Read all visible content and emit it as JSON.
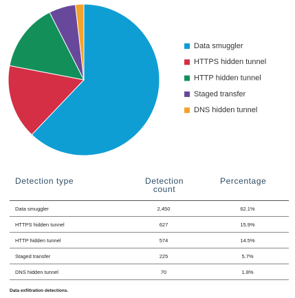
{
  "chart_data": {
    "type": "pie",
    "categories": [
      "Data smuggler",
      "HTTPS hidden tunnel",
      "HTTP hidden tunnel",
      "Staged transfer",
      "DNS hidden tunnel"
    ],
    "values": [
      62.1,
      15.9,
      14.5,
      5.7,
      1.8
    ],
    "colors": [
      "#0e9ed3",
      "#d42f45",
      "#13905a",
      "#68489b",
      "#f4a32a"
    ],
    "legend": "right"
  },
  "table": {
    "columns": [
      "Detection type",
      "Detection count",
      "Percentage"
    ],
    "rows": [
      [
        "Data smuggler",
        "2,450",
        "62.1%"
      ],
      [
        "HTTPS hidden tunnel",
        "627",
        "15.9%"
      ],
      [
        "HTTP hidden tunnel",
        "574",
        "14.5%"
      ],
      [
        "Staged transfer",
        "225",
        "5.7%"
      ],
      [
        "DNS hidden tunnel",
        "70",
        "1.8%"
      ]
    ]
  },
  "caption": "Data exfiltration detections."
}
